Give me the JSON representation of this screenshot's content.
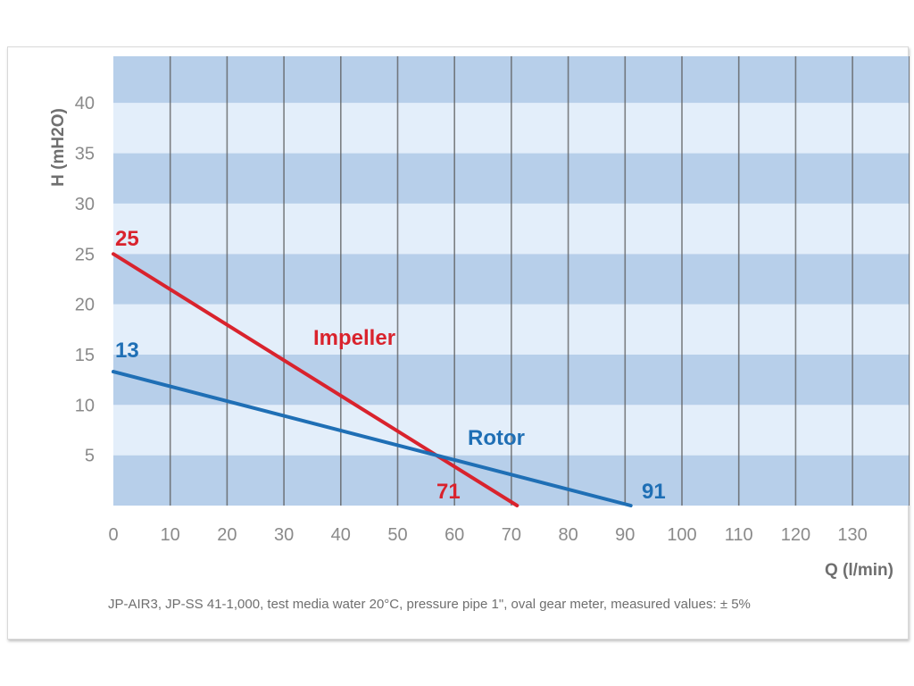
{
  "chart_data": {
    "type": "line",
    "title": "",
    "xlabel": "Q (l/min)",
    "ylabel": "H (mH2O)",
    "xlim": [
      0,
      140
    ],
    "ylim": [
      0,
      45
    ],
    "x_ticks": [
      0,
      10,
      20,
      30,
      40,
      50,
      60,
      70,
      80,
      90,
      100,
      110,
      120,
      130
    ],
    "y_ticks": [
      5,
      10,
      15,
      20,
      25,
      30,
      35,
      40
    ],
    "grid": true,
    "background": "horizontal alternating blue bands",
    "series": [
      {
        "name": "Impeller",
        "color": "#d9232d",
        "points": [
          [
            0,
            25
          ],
          [
            71,
            0
          ]
        ],
        "start_label": "25",
        "end_label": "71"
      },
      {
        "name": "Rotor",
        "color": "#1f6fb5",
        "points": [
          [
            0,
            13.3
          ],
          [
            91,
            0
          ]
        ],
        "start_label": "13",
        "end_label": "91"
      }
    ],
    "footnote": "JP-AIR3, JP-SS 41-1,000, test media water 20°C, pressure pipe 1\", oval gear meter, measured values: ± 5%"
  },
  "colors": {
    "band_dark": "#b7cfea",
    "band_light": "#e3eefa",
    "gridline": "#5a5a5a",
    "tick_text": "#8a8a8a"
  }
}
